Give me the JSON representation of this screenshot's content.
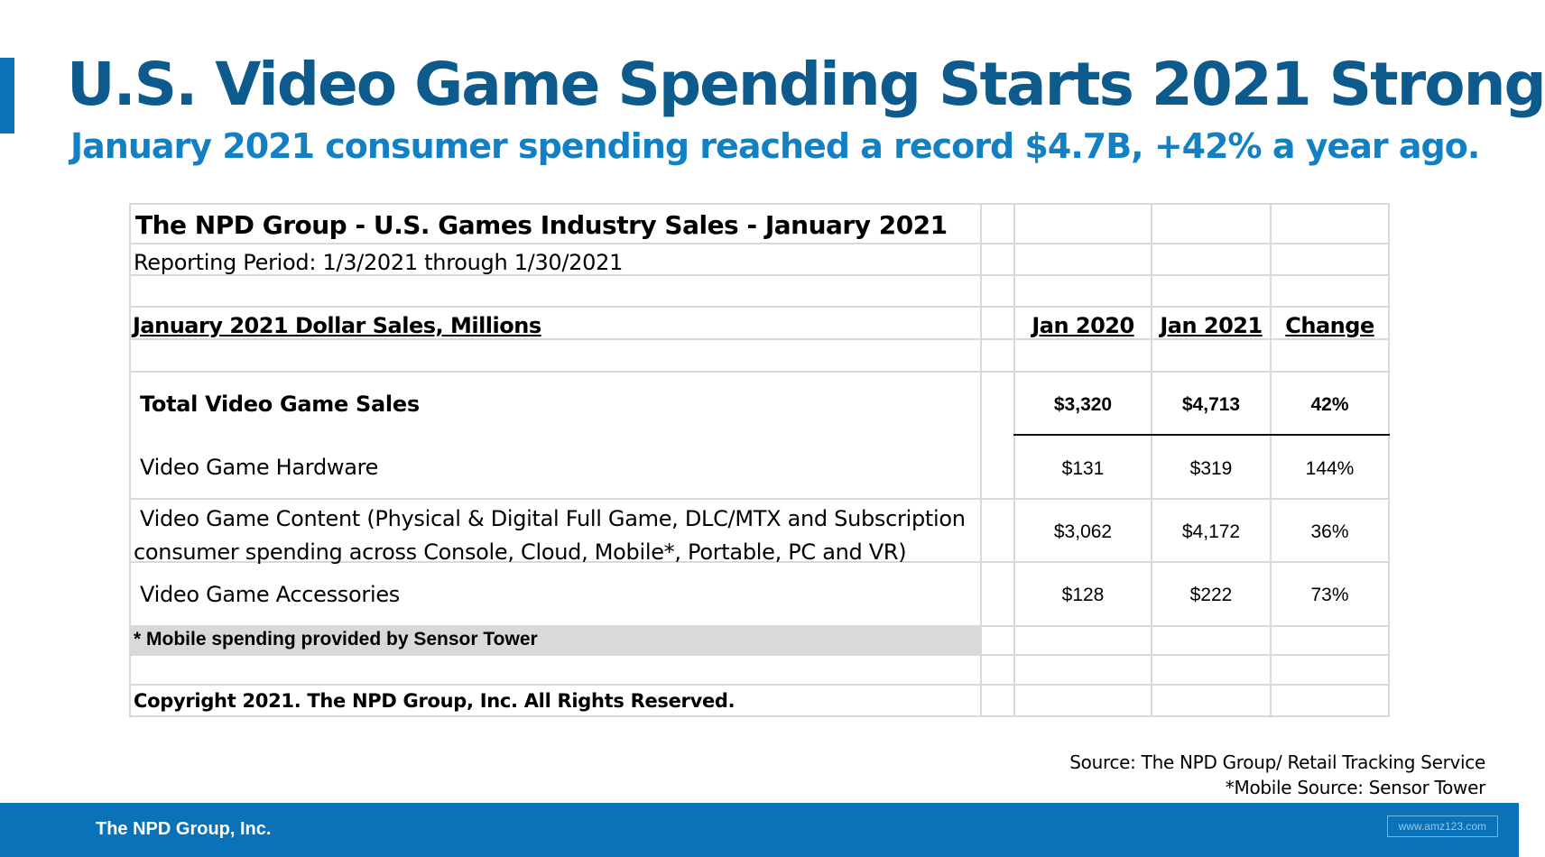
{
  "slide": {
    "title": "U.S. Video Game Spending Starts 2021 Strong",
    "subtitle": "January 2021 consumer spending reached a record $4.7B, +42% a year ago."
  },
  "table": {
    "title": "The NPD Group - U.S. Games Industry Sales - January 2021",
    "period": "Reporting Period: 1/3/2021 through 1/30/2021",
    "section_header": "January 2021 Dollar Sales, Millions",
    "columns": [
      "Jan 2020",
      "Jan 2021",
      "Change"
    ],
    "rows": [
      {
        "label": "Total Video Game Sales",
        "values": [
          "$3,320",
          "$4,713",
          "42%"
        ]
      },
      {
        "label": "Video Game Hardware",
        "values": [
          "$131",
          "$319",
          "144%"
        ]
      },
      {
        "label_line1": "Video Game Content (Physical & Digital Full Game, DLC/MTX and Subscription",
        "label_line2": "consumer spending across Console, Cloud, Mobile*, Portable, PC and VR)",
        "values": [
          "$3,062",
          "$4,172",
          "36%"
        ]
      },
      {
        "label": "Video Game Accessories",
        "values": [
          "$128",
          "$222",
          "73%"
        ]
      }
    ],
    "note": "* Mobile spending provided by Sensor Tower",
    "copyright": "Copyright 2021.  The NPD Group, Inc.  All Rights Reserved."
  },
  "source": {
    "line1": "Source: The NPD Group/ Retail Tracking Service",
    "line2": "*Mobile Source: Sensor Tower"
  },
  "footer": {
    "brand": "The NPD Group, Inc.",
    "watermark": "www.amz123.com"
  },
  "colors": {
    "accent": "#0a72b9",
    "title": "#0d5a8c",
    "subtitle": "#1380c4"
  }
}
